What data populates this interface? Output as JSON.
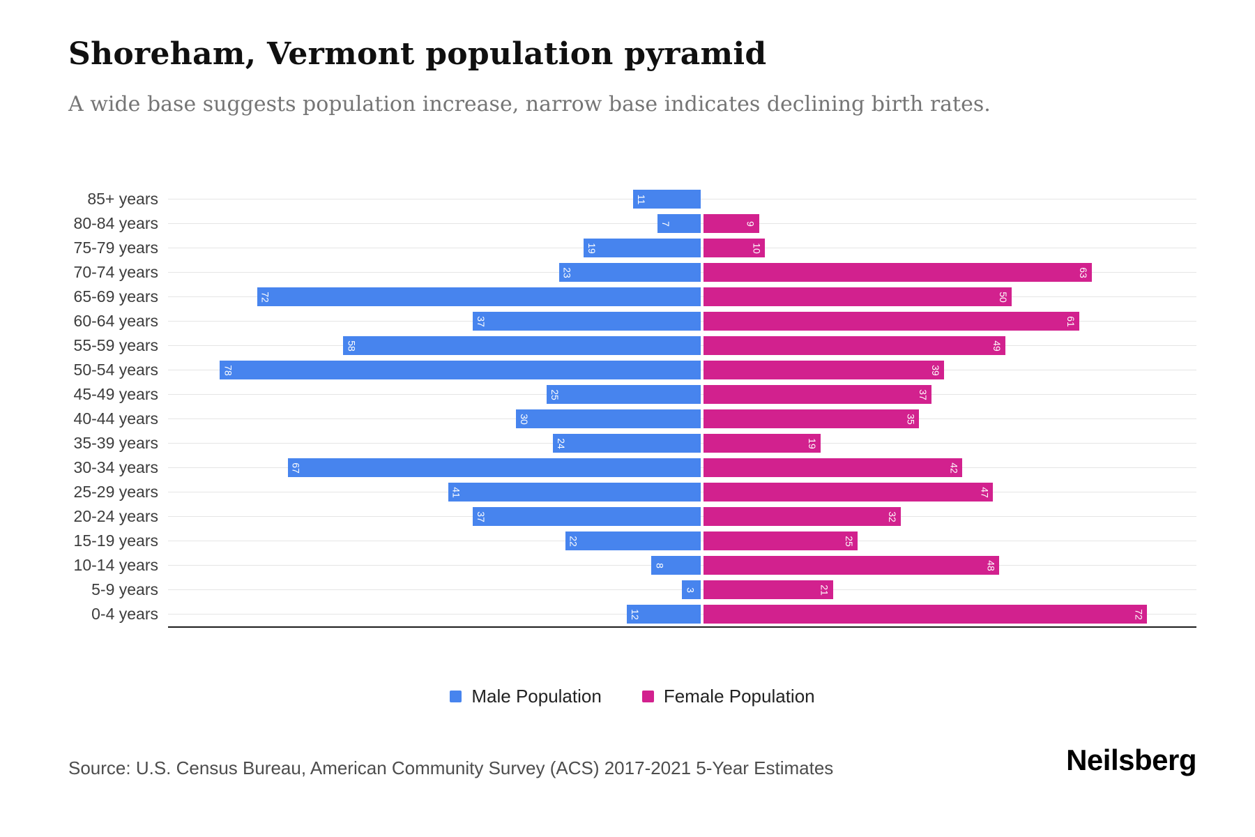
{
  "title": "Shoreham, Vermont population pyramid",
  "subtitle": "A wide base suggests population increase, narrow base indicates declining birth rates.",
  "legend": {
    "male": "Male Population",
    "female": "Female Population"
  },
  "source": "Source: U.S. Census Bureau, American Community Survey (ACS) 2017-2021 5-Year Estimates",
  "logo": "Neilsberg",
  "colors": {
    "male": "#4784ee",
    "female": "#d2218e",
    "gridline": "#e5e5e5",
    "axis": "#1c1c1c"
  },
  "chart_data": {
    "type": "bar",
    "variant": "population-pyramid",
    "orientation": "horizontal",
    "grid": true,
    "legend_position": "bottom",
    "x_range_each_side": [
      0,
      80
    ],
    "categories": [
      "85+ years",
      "80-84 years",
      "75-79 years",
      "70-74 years",
      "65-69 years",
      "60-64 years",
      "55-59 years",
      "50-54 years",
      "45-49 years",
      "40-44 years",
      "35-39 years",
      "30-34 years",
      "25-29 years",
      "20-24 years",
      "15-19 years",
      "10-14 years",
      "5-9 years",
      "0-4 years"
    ],
    "series": [
      {
        "name": "Male Population",
        "side": "left",
        "color": "#4784ee",
        "values": [
          11,
          7,
          19,
          23,
          72,
          37,
          58,
          78,
          25,
          30,
          24,
          67,
          41,
          37,
          22,
          8,
          3,
          12
        ]
      },
      {
        "name": "Female Population",
        "side": "right",
        "color": "#d2218e",
        "values": [
          0,
          9,
          10,
          63,
          50,
          61,
          49,
          39,
          37,
          35,
          19,
          42,
          47,
          32,
          25,
          48,
          21,
          72
        ]
      }
    ]
  }
}
